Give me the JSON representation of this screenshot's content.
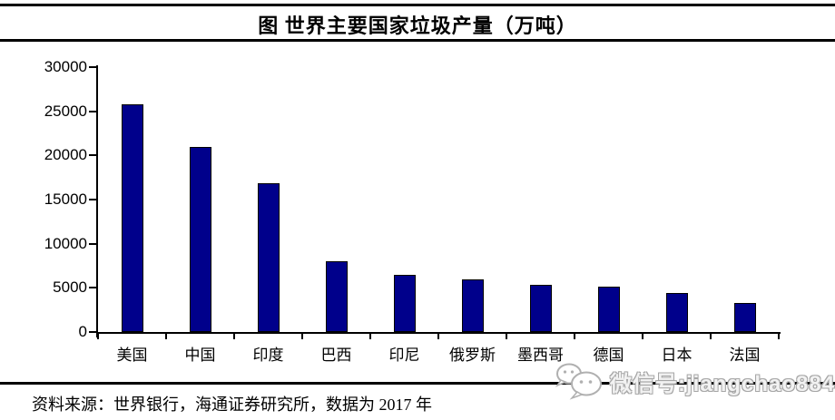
{
  "title": "图 世界主要国家垃圾产量（万吨）",
  "source_note": "资料来源：世界银行，海通证券研究所，数据为 2017 年",
  "watermark": {
    "icon": "wechat-icon",
    "text": "微信号:jiangchao8848"
  },
  "colors": {
    "bar_fill": "#00008B",
    "bar_border": "#000000",
    "axis": "#000000",
    "watermark_gray": "#a6a6a6"
  },
  "chart_data": {
    "type": "bar",
    "title": "图 世界主要国家垃圾产量（万吨）",
    "categories": [
      "美国",
      "中国",
      "印度",
      "巴西",
      "印尼",
      "俄罗斯",
      "墨西哥",
      "德国",
      "日本",
      "法国"
    ],
    "values": [
      25800,
      21000,
      16800,
      8000,
      6500,
      6000,
      5300,
      5100,
      4400,
      3300
    ],
    "xlabel": "",
    "ylabel": "",
    "ylim": [
      0,
      30000
    ],
    "yticks": [
      0,
      5000,
      10000,
      15000,
      20000,
      25000,
      30000
    ],
    "grid": false,
    "legend": null,
    "unit": "万吨",
    "year": "2017"
  }
}
